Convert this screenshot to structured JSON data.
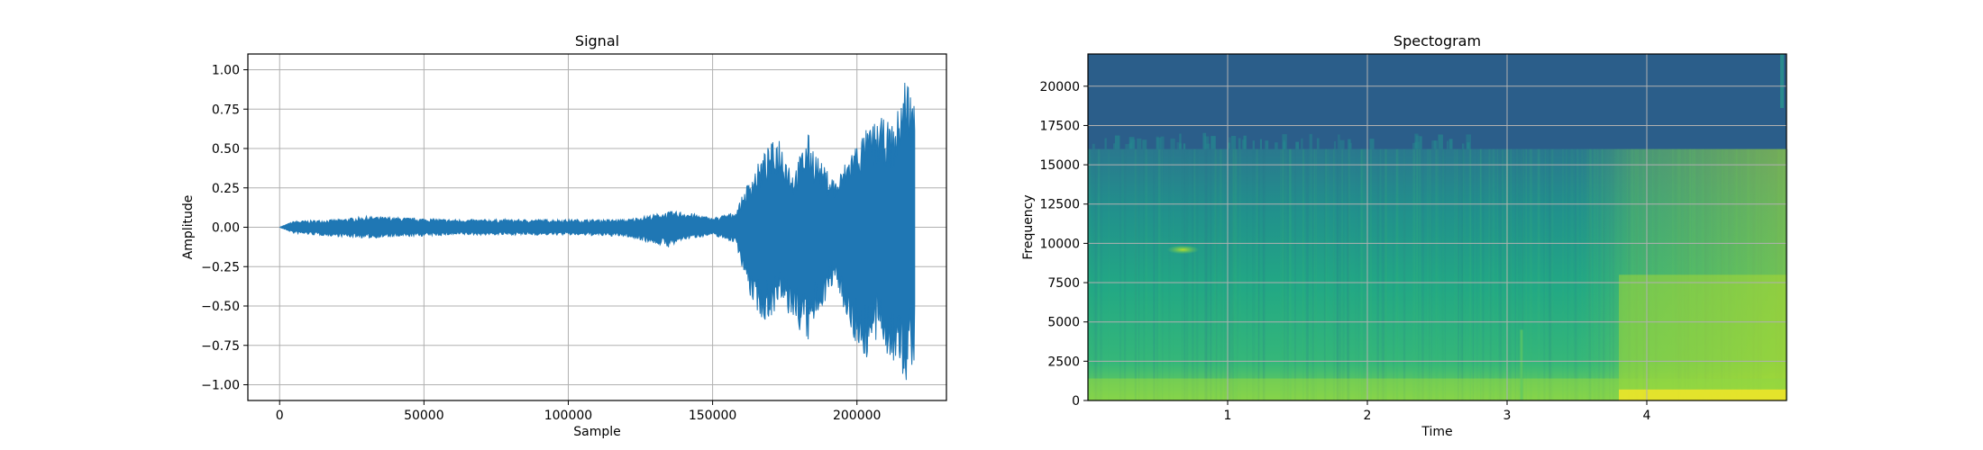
{
  "chart_data": [
    {
      "type": "line",
      "title": "Signal",
      "xlabel": "Sample",
      "ylabel": "Amplitude",
      "xlim": [
        -11000,
        231000
      ],
      "ylim": [
        -1.1,
        1.1
      ],
      "xticks": [
        0,
        50000,
        100000,
        150000,
        200000
      ],
      "xtick_labels": [
        "0",
        "50000",
        "100000",
        "150000",
        "200000"
      ],
      "yticks": [
        1.0,
        0.75,
        0.5,
        0.25,
        0.0,
        -0.25,
        -0.5,
        -0.75,
        -1.0
      ],
      "ytick_labels": [
        "1.00",
        "0.75",
        "0.50",
        "0.25",
        "0.00",
        "−0.25",
        "−0.50",
        "−0.75",
        "−1.00"
      ],
      "grid": true,
      "color": "#1f77b4",
      "series": [
        {
          "envelope": {
            "x": [
              0,
              5000,
              20000,
              30000,
              60000,
              100000,
              120000,
              135000,
              140000,
              150000,
              158000,
              163000,
              168000,
              173000,
              178000,
              183000,
              188000,
              193000,
              198000,
              203000,
              208000,
              213000,
              217000,
              220000
            ],
            "ymax": [
              0.0,
              0.04,
              0.05,
              0.07,
              0.05,
              0.05,
              0.05,
              0.1,
              0.1,
              0.06,
              0.1,
              0.32,
              0.48,
              0.6,
              0.35,
              0.6,
              0.4,
              0.3,
              0.5,
              0.62,
              0.7,
              0.65,
              1.0,
              0.8
            ],
            "ymin": [
              0.0,
              -0.04,
              -0.06,
              -0.07,
              -0.05,
              -0.05,
              -0.06,
              -0.13,
              -0.08,
              -0.05,
              -0.1,
              -0.45,
              -0.62,
              -0.5,
              -0.6,
              -0.75,
              -0.5,
              -0.35,
              -0.7,
              -0.85,
              -0.72,
              -0.9,
              -1.0,
              -0.85
            ]
          }
        }
      ]
    },
    {
      "type": "heatmap",
      "title": "Spectogram",
      "xlabel": "Time",
      "ylabel": "Frequency",
      "xlim": [
        0,
        5.0
      ],
      "ylim": [
        0,
        22050
      ],
      "xticks": [
        1,
        2,
        3,
        4
      ],
      "xtick_labels": [
        "1",
        "2",
        "3",
        "4"
      ],
      "yticks": [
        0,
        2500,
        5000,
        7500,
        10000,
        12500,
        15000,
        17500,
        20000
      ],
      "ytick_labels": [
        "0",
        "2500",
        "5000",
        "7500",
        "10000",
        "12500",
        "15000",
        "17500",
        "20000"
      ],
      "grid": true,
      "colormap": "viridis",
      "features": {
        "cutoff_frequency": 16000,
        "loud_region_start_time": 3.8,
        "transient_time": 3.1,
        "blob": {
          "time": 0.68,
          "frequency": 9600
        }
      }
    }
  ]
}
